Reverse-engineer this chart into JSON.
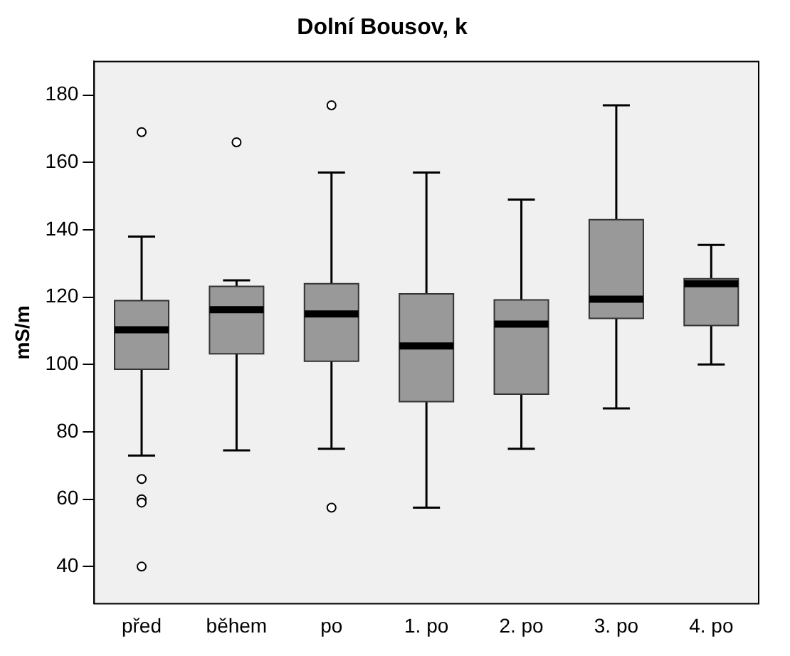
{
  "chart_data": {
    "type": "box",
    "title": "Dolní Bousov, k",
    "ylabel": "mS/m",
    "categories": [
      "před",
      "během",
      "po",
      "1. po",
      "2. po",
      "3. po",
      "4. po"
    ],
    "series": [
      {
        "color": "#999999",
        "boxes": [
          {
            "low": 73,
            "q1": 98.6,
            "median": 110.3,
            "q3": 119,
            "high": 138,
            "outliers": [
              169,
              66,
              60,
              59,
              40
            ]
          },
          {
            "low": 74.5,
            "q1": 103.2,
            "median": 116.3,
            "q3": 123.2,
            "high": 125,
            "outliers": [
              166
            ]
          },
          {
            "low": 75,
            "q1": 101,
            "median": 115,
            "q3": 124,
            "high": 157,
            "outliers": [
              177,
              57.5
            ]
          },
          {
            "low": 57.5,
            "q1": 89,
            "median": 105.5,
            "q3": 121,
            "high": 157
          },
          {
            "low": 75,
            "q1": 91.2,
            "median": 112,
            "q3": 119.2,
            "high": 149
          },
          {
            "low": 87,
            "q1": 113.7,
            "median": 119.4,
            "q3": 143,
            "high": 177
          },
          {
            "low": 100,
            "q1": 111.6,
            "median": 124,
            "q3": 125.5,
            "high": 135.5
          }
        ]
      }
    ],
    "ylim": [
      29,
      190
    ],
    "yticks": [
      40,
      60,
      80,
      100,
      120,
      140,
      160,
      180
    ]
  }
}
